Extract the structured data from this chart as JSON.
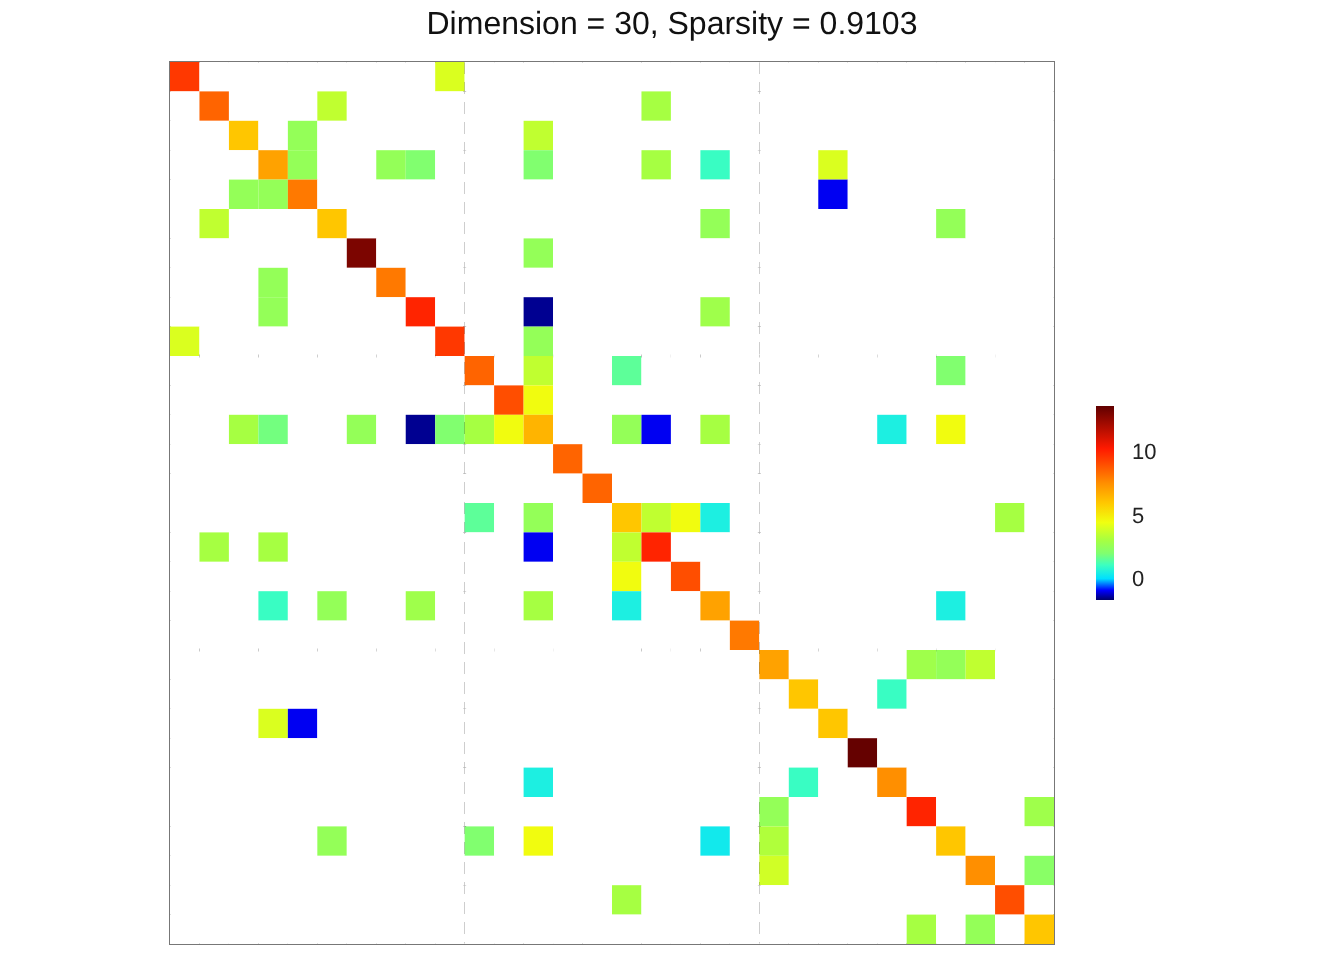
{
  "chart_data": {
    "type": "heatmap",
    "title": "Dimension = 30, Sparsity = 0.9103",
    "categories": [
      null,
      null,
      null,
      null,
      null,
      null,
      null,
      null,
      null,
      null,
      null,
      null,
      null,
      null,
      null,
      null,
      null,
      null,
      null,
      null,
      null,
      null,
      null,
      null,
      null,
      null,
      null,
      null,
      null,
      null
    ],
    "y_categories": [
      null,
      null,
      null,
      null,
      null,
      null,
      null,
      null,
      null,
      null,
      null,
      null,
      null,
      null,
      null,
      null,
      null,
      null,
      null,
      null,
      null,
      null,
      null,
      null,
      null,
      null,
      null,
      null,
      null,
      null
    ],
    "cells": [
      [
        9.5,
        null,
        null,
        null,
        null,
        null,
        null,
        null,
        null,
        4,
        null,
        null,
        null,
        null,
        null,
        null,
        null,
        null,
        null,
        null,
        null,
        null,
        null,
        null,
        null,
        null,
        null,
        null,
        null,
        null
      ],
      [
        null,
        8.5,
        null,
        null,
        null,
        3.5,
        null,
        null,
        null,
        null,
        null,
        null,
        null,
        null,
        null,
        null,
        3,
        null,
        null,
        null,
        null,
        null,
        null,
        null,
        null,
        null,
        null,
        null,
        null,
        null
      ],
      [
        null,
        null,
        6,
        null,
        2.5,
        null,
        null,
        null,
        null,
        null,
        null,
        null,
        3.5,
        null,
        null,
        null,
        null,
        null,
        null,
        null,
        null,
        null,
        null,
        null,
        null,
        null,
        null,
        null,
        null,
        null
      ],
      [
        null,
        null,
        null,
        7,
        2.5,
        null,
        null,
        2.5,
        2,
        null,
        null,
        null,
        2,
        null,
        null,
        null,
        3,
        null,
        1,
        null,
        null,
        null,
        4,
        null,
        null,
        null,
        null,
        null,
        null,
        null
      ],
      [
        null,
        null,
        2.5,
        2.5,
        8,
        null,
        null,
        null,
        null,
        null,
        null,
        null,
        null,
        null,
        null,
        null,
        null,
        null,
        null,
        null,
        null,
        null,
        -1,
        null,
        null,
        null,
        null,
        null,
        null,
        null
      ],
      [
        null,
        3.5,
        null,
        null,
        null,
        6,
        null,
        null,
        null,
        null,
        null,
        null,
        null,
        null,
        null,
        null,
        null,
        null,
        2.5,
        null,
        null,
        null,
        null,
        null,
        null,
        null,
        2.5,
        null,
        null,
        null
      ],
      [
        null,
        null,
        null,
        null,
        null,
        null,
        13,
        null,
        null,
        null,
        null,
        null,
        2.5,
        null,
        null,
        null,
        null,
        null,
        null,
        null,
        null,
        null,
        null,
        null,
        null,
        null,
        null,
        null,
        null,
        null
      ],
      [
        null,
        null,
        null,
        2.5,
        null,
        null,
        null,
        8,
        null,
        null,
        null,
        null,
        null,
        null,
        null,
        null,
        null,
        null,
        null,
        null,
        null,
        null,
        null,
        null,
        null,
        null,
        null,
        null,
        null,
        null
      ],
      [
        null,
        null,
        null,
        2.5,
        null,
        null,
        null,
        null,
        10,
        null,
        null,
        null,
        -1.5,
        null,
        null,
        null,
        null,
        null,
        2.8,
        null,
        null,
        null,
        null,
        null,
        null,
        null,
        null,
        null,
        null,
        null
      ],
      [
        4,
        null,
        null,
        null,
        null,
        null,
        null,
        null,
        null,
        9.5,
        null,
        null,
        2.5,
        null,
        null,
        null,
        null,
        null,
        null,
        null,
        null,
        null,
        null,
        null,
        null,
        null,
        null,
        null,
        null,
        null
      ],
      [
        null,
        null,
        null,
        null,
        null,
        null,
        null,
        null,
        null,
        null,
        8.5,
        null,
        3.5,
        null,
        null,
        1.5,
        null,
        null,
        null,
        null,
        null,
        null,
        null,
        null,
        null,
        null,
        2,
        null,
        null,
        null
      ],
      [
        null,
        null,
        null,
        null,
        null,
        null,
        null,
        null,
        null,
        null,
        null,
        9,
        4.5,
        null,
        null,
        null,
        null,
        null,
        null,
        null,
        null,
        null,
        null,
        null,
        null,
        null,
        null,
        null,
        null,
        null
      ],
      [
        null,
        null,
        3,
        1.8,
        null,
        null,
        2.5,
        null,
        -1.5,
        2,
        3,
        4.5,
        6.5,
        null,
        null,
        2.5,
        -1,
        null,
        3,
        null,
        null,
        null,
        null,
        null,
        0.5,
        null,
        4.5,
        null,
        null,
        null
      ],
      [
        null,
        null,
        null,
        null,
        null,
        null,
        null,
        null,
        null,
        null,
        null,
        null,
        null,
        8.5,
        null,
        null,
        null,
        null,
        null,
        null,
        null,
        null,
        null,
        null,
        null,
        null,
        null,
        null,
        null,
        null
      ],
      [
        null,
        null,
        null,
        null,
        null,
        null,
        null,
        null,
        null,
        null,
        null,
        null,
        null,
        null,
        8.5,
        null,
        null,
        null,
        null,
        null,
        null,
        null,
        null,
        null,
        null,
        null,
        null,
        null,
        null,
        null
      ],
      [
        null,
        null,
        null,
        null,
        null,
        null,
        null,
        null,
        null,
        null,
        1.5,
        null,
        2.5,
        null,
        null,
        6,
        3.5,
        4.5,
        0.5,
        null,
        null,
        null,
        null,
        null,
        null,
        null,
        null,
        null,
        3,
        null
      ],
      [
        null,
        3,
        null,
        3,
        null,
        null,
        null,
        null,
        null,
        null,
        null,
        null,
        -1,
        null,
        null,
        3.5,
        10,
        null,
        null,
        null,
        null,
        null,
        null,
        null,
        null,
        null,
        null,
        null,
        null,
        null
      ],
      [
        null,
        null,
        null,
        null,
        null,
        null,
        null,
        null,
        null,
        null,
        null,
        null,
        null,
        null,
        null,
        4.5,
        null,
        9,
        null,
        null,
        null,
        null,
        null,
        null,
        null,
        null,
        null,
        null,
        null,
        null
      ],
      [
        null,
        null,
        null,
        1,
        null,
        2.5,
        null,
        null,
        2.8,
        null,
        null,
        null,
        3,
        null,
        null,
        0.5,
        null,
        null,
        7,
        null,
        null,
        null,
        null,
        null,
        null,
        null,
        0.5,
        null,
        null,
        null
      ],
      [
        null,
        null,
        null,
        null,
        null,
        null,
        null,
        null,
        null,
        null,
        null,
        null,
        null,
        null,
        null,
        null,
        null,
        null,
        null,
        8,
        null,
        null,
        null,
        null,
        null,
        null,
        null,
        null,
        null,
        null
      ],
      [
        null,
        null,
        null,
        null,
        null,
        null,
        null,
        null,
        null,
        null,
        null,
        null,
        null,
        null,
        null,
        null,
        null,
        null,
        null,
        null,
        7,
        null,
        null,
        null,
        null,
        2.8,
        2.5,
        3.5,
        null,
        null
      ],
      [
        null,
        null,
        null,
        null,
        null,
        null,
        null,
        null,
        null,
        null,
        null,
        null,
        null,
        null,
        null,
        null,
        null,
        null,
        null,
        null,
        null,
        6,
        null,
        null,
        1,
        null,
        null,
        null,
        null,
        null
      ],
      [
        null,
        null,
        null,
        4,
        -1,
        null,
        null,
        null,
        null,
        null,
        null,
        null,
        null,
        null,
        null,
        null,
        null,
        null,
        null,
        null,
        null,
        null,
        6,
        null,
        null,
        null,
        null,
        null,
        null,
        null
      ],
      [
        null,
        null,
        null,
        null,
        null,
        null,
        null,
        null,
        null,
        null,
        null,
        null,
        null,
        null,
        null,
        null,
        null,
        null,
        null,
        null,
        null,
        null,
        null,
        13.5,
        null,
        null,
        null,
        null,
        null,
        null
      ],
      [
        null,
        null,
        null,
        null,
        null,
        null,
        null,
        null,
        null,
        null,
        null,
        null,
        0.5,
        null,
        null,
        null,
        null,
        null,
        null,
        null,
        null,
        1,
        null,
        null,
        7.5,
        null,
        null,
        null,
        null,
        null
      ],
      [
        null,
        null,
        null,
        null,
        null,
        null,
        null,
        null,
        null,
        null,
        null,
        null,
        null,
        null,
        null,
        null,
        null,
        null,
        null,
        null,
        2.5,
        null,
        null,
        null,
        null,
        10,
        null,
        null,
        null,
        2.8
      ],
      [
        null,
        null,
        null,
        null,
        null,
        2.5,
        null,
        null,
        null,
        null,
        2,
        null,
        4.5,
        null,
        null,
        null,
        null,
        null,
        0.3,
        null,
        3.2,
        null,
        null,
        null,
        null,
        null,
        6,
        null,
        null,
        null
      ],
      [
        null,
        null,
        null,
        null,
        null,
        null,
        null,
        null,
        null,
        null,
        null,
        null,
        null,
        null,
        null,
        null,
        null,
        null,
        null,
        null,
        3.8,
        null,
        null,
        null,
        null,
        null,
        null,
        7.5,
        null,
        2.2
      ],
      [
        null,
        null,
        null,
        null,
        null,
        null,
        null,
        null,
        null,
        null,
        null,
        null,
        null,
        null,
        null,
        3,
        null,
        null,
        null,
        null,
        null,
        null,
        null,
        null,
        null,
        null,
        null,
        null,
        9,
        null
      ],
      [
        null,
        null,
        null,
        null,
        null,
        null,
        null,
        null,
        null,
        null,
        null,
        null,
        null,
        null,
        null,
        null,
        null,
        null,
        null,
        null,
        null,
        null,
        null,
        null,
        null,
        3,
        null,
        2.5,
        null,
        6
      ]
    ],
    "clim": [
      -1.7,
      13.6
    ],
    "cticks": [
      0,
      5,
      10
    ]
  }
}
